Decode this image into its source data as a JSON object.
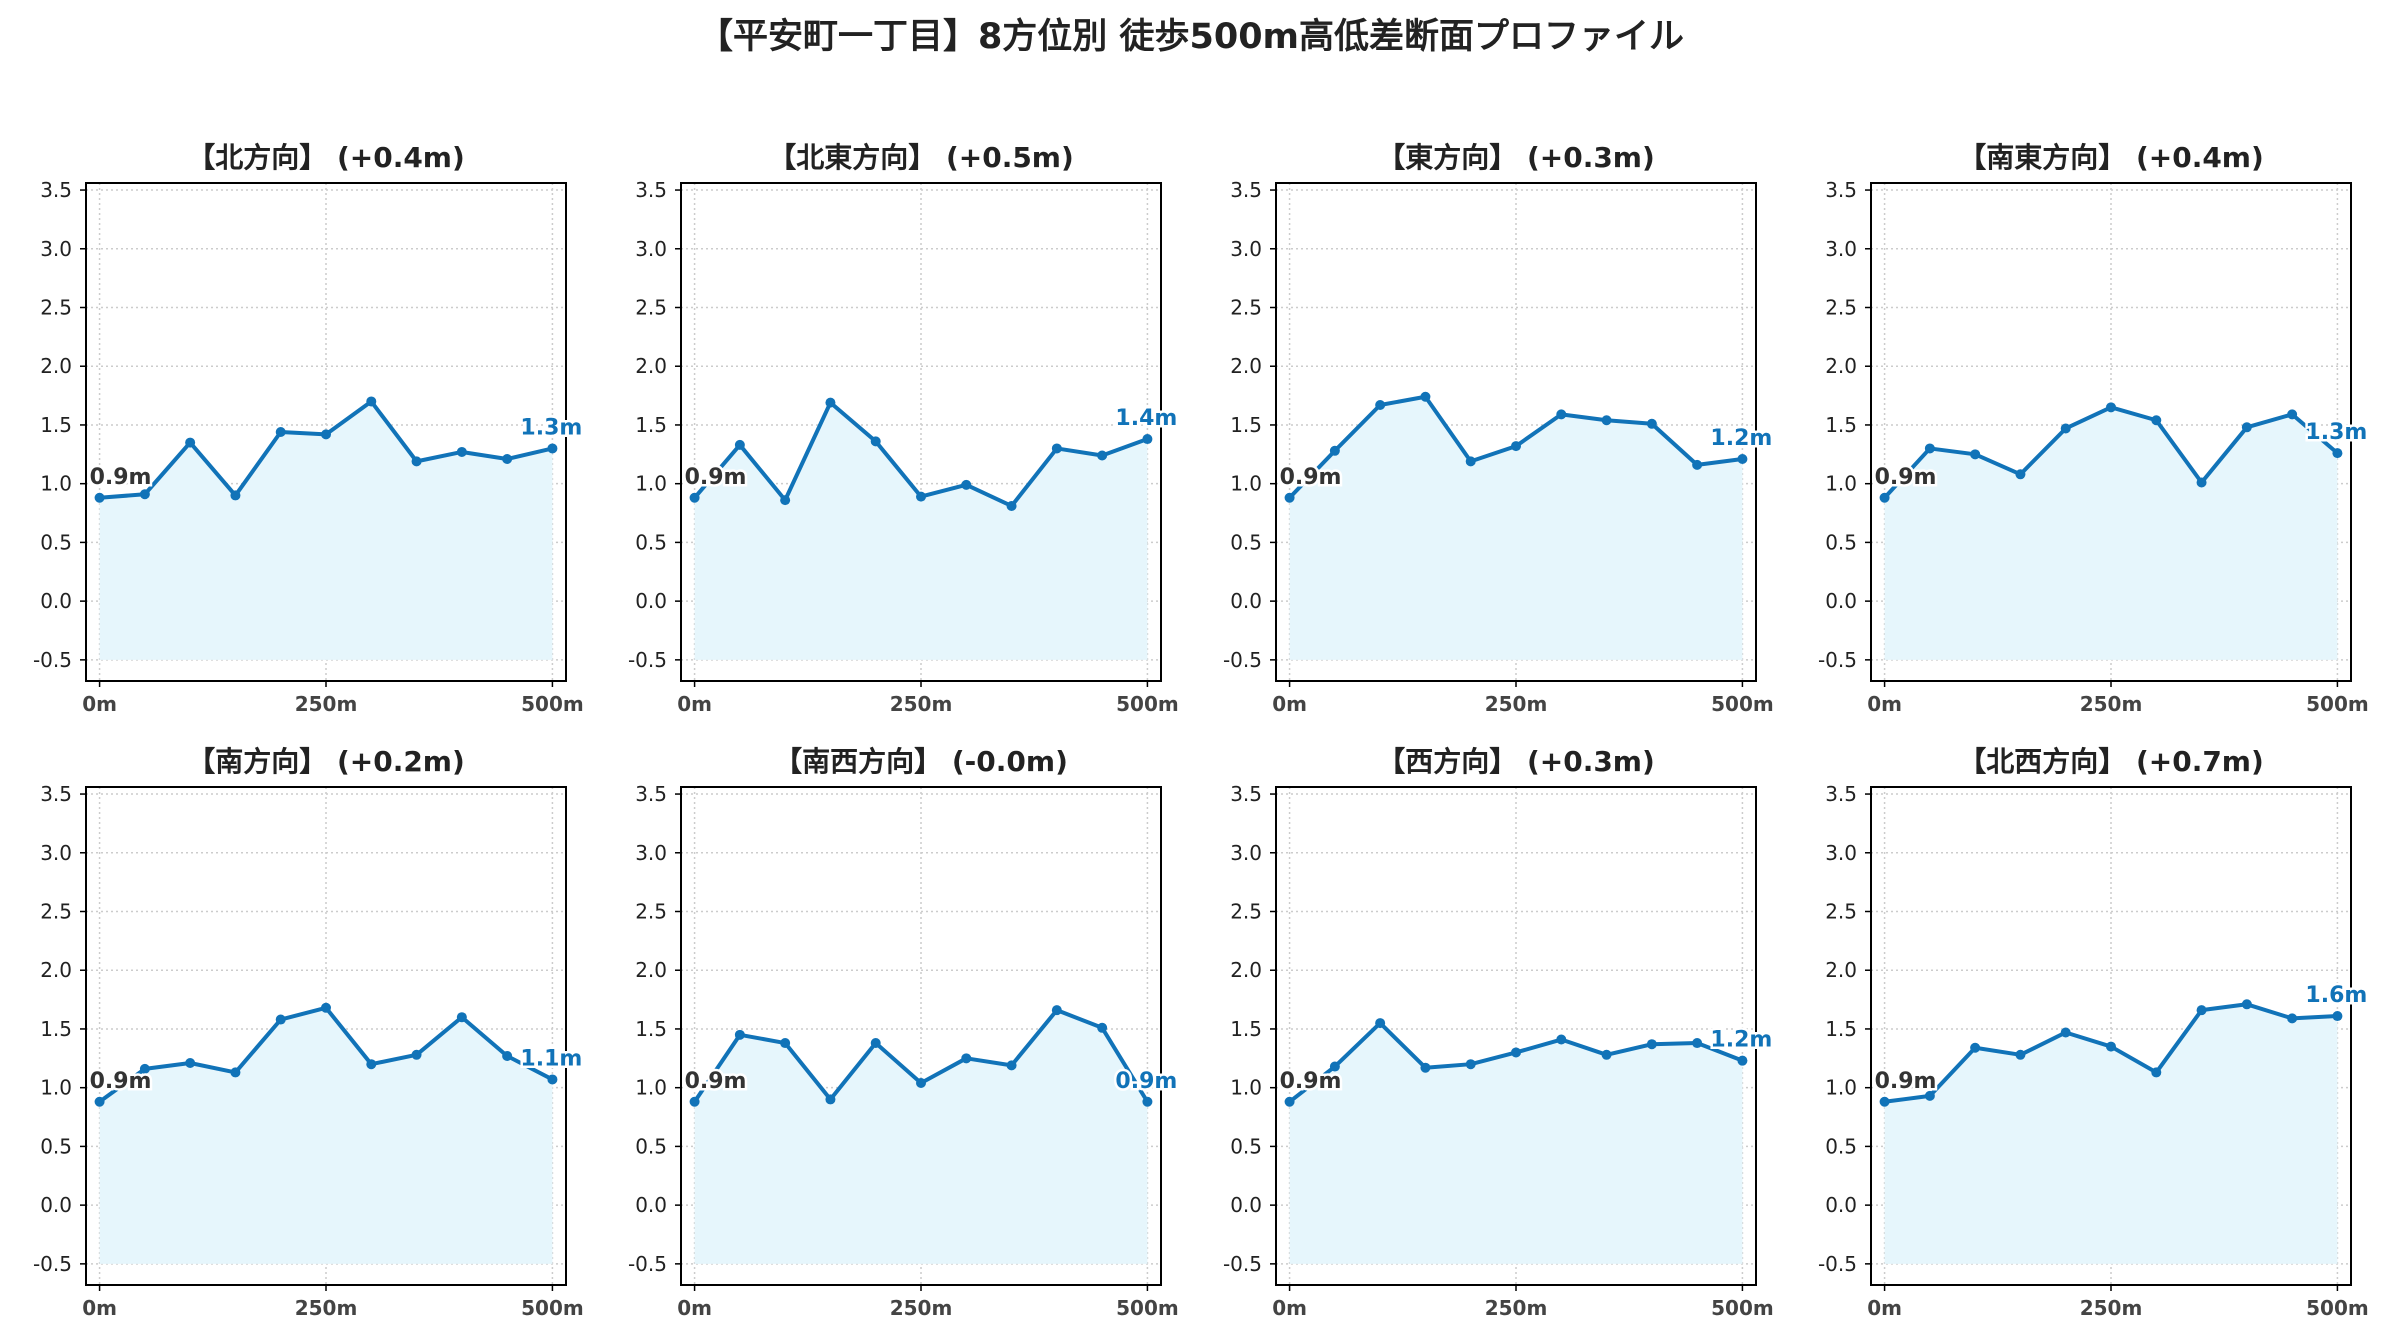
{
  "title": "【平安町一丁目】8方位別 徒歩500m高低差断面プロファイル",
  "style": {
    "line_color": "#1173b8",
    "fill_color": "#e6f6fc",
    "start_label_color": "#333333",
    "end_label_color": "#1173b8",
    "grid_color": "#cccccc"
  },
  "chart_data": [
    {
      "type": "line",
      "title": "【北方向】 (+0.4m)",
      "x": [
        0,
        50,
        100,
        150,
        200,
        250,
        300,
        350,
        400,
        450,
        500
      ],
      "series": [
        {
          "values": [
            0.88,
            0.91,
            1.35,
            0.9,
            1.44,
            1.42,
            1.7,
            1.19,
            1.27,
            1.21,
            1.3
          ]
        }
      ],
      "start_label": "0.9m",
      "end_label": "1.3m",
      "xticks": [
        "0m",
        "250m",
        "500m"
      ],
      "xlim": [
        -15,
        515
      ],
      "yticks": [
        "-0.5",
        "0.0",
        "0.5",
        "1.0",
        "1.5",
        "2.0",
        "2.5",
        "3.0",
        "3.5"
      ],
      "ylim": [
        -0.68,
        3.56
      ],
      "grid": true
    },
    {
      "type": "line",
      "title": "【北東方向】 (+0.5m)",
      "x": [
        0,
        50,
        100,
        150,
        200,
        250,
        300,
        350,
        400,
        450,
        500
      ],
      "series": [
        {
          "values": [
            0.88,
            1.33,
            0.86,
            1.69,
            1.36,
            0.89,
            0.99,
            0.81,
            1.3,
            1.24,
            1.38
          ]
        }
      ],
      "start_label": "0.9m",
      "end_label": "1.4m",
      "xticks": [
        "0m",
        "250m",
        "500m"
      ],
      "xlim": [
        -15,
        515
      ],
      "yticks": [
        "-0.5",
        "0.0",
        "0.5",
        "1.0",
        "1.5",
        "2.0",
        "2.5",
        "3.0",
        "3.5"
      ],
      "ylim": [
        -0.68,
        3.56
      ],
      "grid": true
    },
    {
      "type": "line",
      "title": "【東方向】 (+0.3m)",
      "x": [
        0,
        50,
        100,
        150,
        200,
        250,
        300,
        350,
        400,
        450,
        500
      ],
      "series": [
        {
          "values": [
            0.88,
            1.28,
            1.67,
            1.74,
            1.19,
            1.32,
            1.59,
            1.54,
            1.51,
            1.16,
            1.21
          ]
        }
      ],
      "start_label": "0.9m",
      "end_label": "1.2m",
      "xticks": [
        "0m",
        "250m",
        "500m"
      ],
      "xlim": [
        -15,
        515
      ],
      "yticks": [
        "-0.5",
        "0.0",
        "0.5",
        "1.0",
        "1.5",
        "2.0",
        "2.5",
        "3.0",
        "3.5"
      ],
      "ylim": [
        -0.68,
        3.56
      ],
      "grid": true
    },
    {
      "type": "line",
      "title": "【南東方向】 (+0.4m)",
      "x": [
        0,
        50,
        100,
        150,
        200,
        250,
        300,
        350,
        400,
        450,
        500
      ],
      "series": [
        {
          "values": [
            0.88,
            1.3,
            1.25,
            1.08,
            1.47,
            1.65,
            1.54,
            1.01,
            1.48,
            1.59,
            1.26
          ]
        }
      ],
      "start_label": "0.9m",
      "end_label": "1.3m",
      "xticks": [
        "0m",
        "250m",
        "500m"
      ],
      "xlim": [
        -15,
        515
      ],
      "yticks": [
        "-0.5",
        "0.0",
        "0.5",
        "1.0",
        "1.5",
        "2.0",
        "2.5",
        "3.0",
        "3.5"
      ],
      "ylim": [
        -0.68,
        3.56
      ],
      "grid": true
    },
    {
      "type": "line",
      "title": "【南方向】 (+0.2m)",
      "x": [
        0,
        50,
        100,
        150,
        200,
        250,
        300,
        350,
        400,
        450,
        500
      ],
      "series": [
        {
          "values": [
            0.88,
            1.16,
            1.21,
            1.13,
            1.58,
            1.68,
            1.2,
            1.28,
            1.6,
            1.27,
            1.07
          ]
        }
      ],
      "start_label": "0.9m",
      "end_label": "1.1m",
      "xticks": [
        "0m",
        "250m",
        "500m"
      ],
      "xlim": [
        -15,
        515
      ],
      "yticks": [
        "-0.5",
        "0.0",
        "0.5",
        "1.0",
        "1.5",
        "2.0",
        "2.5",
        "3.0",
        "3.5"
      ],
      "ylim": [
        -0.68,
        3.56
      ],
      "grid": true
    },
    {
      "type": "line",
      "title": "【南西方向】 (-0.0m)",
      "x": [
        0,
        50,
        100,
        150,
        200,
        250,
        300,
        350,
        400,
        450,
        500
      ],
      "series": [
        {
          "values": [
            0.88,
            1.45,
            1.38,
            0.9,
            1.38,
            1.04,
            1.25,
            1.19,
            1.66,
            1.51,
            0.88
          ]
        }
      ],
      "start_label": "0.9m",
      "end_label": "0.9m",
      "xticks": [
        "0m",
        "250m",
        "500m"
      ],
      "xlim": [
        -15,
        515
      ],
      "yticks": [
        "-0.5",
        "0.0",
        "0.5",
        "1.0",
        "1.5",
        "2.0",
        "2.5",
        "3.0",
        "3.5"
      ],
      "ylim": [
        -0.68,
        3.56
      ],
      "grid": true
    },
    {
      "type": "line",
      "title": "【西方向】 (+0.3m)",
      "x": [
        0,
        50,
        100,
        150,
        200,
        250,
        300,
        350,
        400,
        450,
        500
      ],
      "series": [
        {
          "values": [
            0.88,
            1.18,
            1.55,
            1.17,
            1.2,
            1.3,
            1.41,
            1.28,
            1.37,
            1.38,
            1.23
          ]
        }
      ],
      "start_label": "0.9m",
      "end_label": "1.2m",
      "xticks": [
        "0m",
        "250m",
        "500m"
      ],
      "xlim": [
        -15,
        515
      ],
      "yticks": [
        "-0.5",
        "0.0",
        "0.5",
        "1.0",
        "1.5",
        "2.0",
        "2.5",
        "3.0",
        "3.5"
      ],
      "ylim": [
        -0.68,
        3.56
      ],
      "grid": true
    },
    {
      "type": "line",
      "title": "【北西方向】 (+0.7m)",
      "x": [
        0,
        50,
        100,
        150,
        200,
        250,
        300,
        350,
        400,
        450,
        500
      ],
      "series": [
        {
          "values": [
            0.88,
            0.93,
            1.34,
            1.28,
            1.47,
            1.35,
            1.13,
            1.66,
            1.71,
            1.59,
            1.61
          ]
        }
      ],
      "start_label": "0.9m",
      "end_label": "1.6m",
      "xticks": [
        "0m",
        "250m",
        "500m"
      ],
      "xlim": [
        -15,
        515
      ],
      "yticks": [
        "-0.5",
        "0.0",
        "0.5",
        "1.0",
        "1.5",
        "2.0",
        "2.5",
        "3.0",
        "3.5"
      ],
      "ylim": [
        -0.68,
        3.56
      ],
      "grid": true
    }
  ]
}
